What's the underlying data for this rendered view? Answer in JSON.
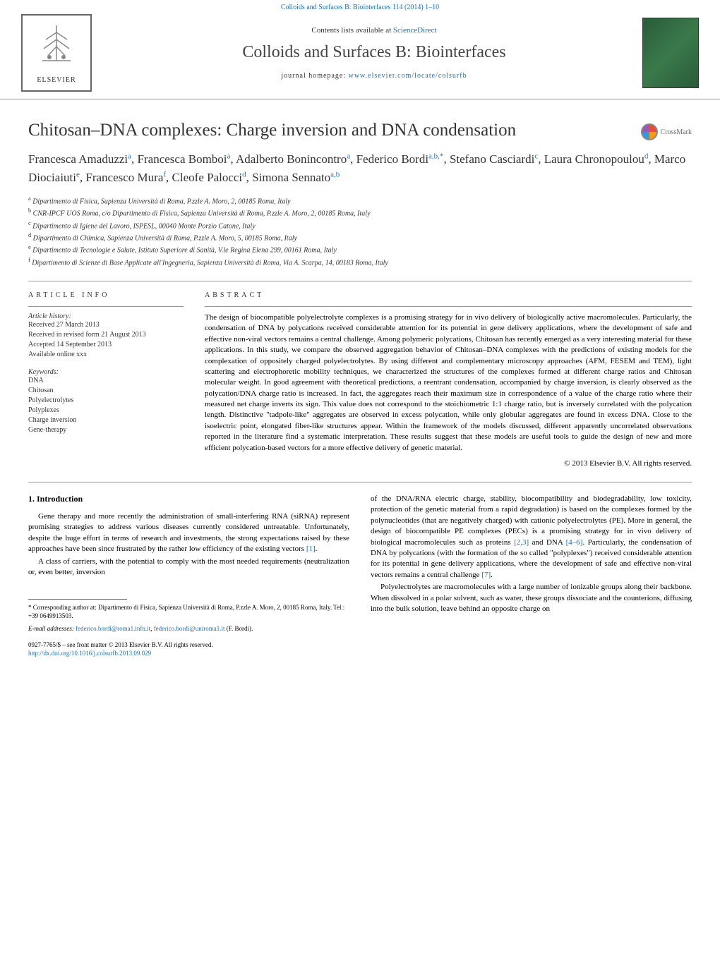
{
  "top_link": "Colloids and Surfaces B: Biointerfaces 114 (2014) 1–10",
  "header": {
    "contents_prefix": "Contents lists available at ",
    "contents_link": "ScienceDirect",
    "journal_title": "Colloids and Surfaces B: Biointerfaces",
    "homepage_prefix": "journal homepage: ",
    "homepage_link": "www.elsevier.com/locate/colsurfb",
    "publisher": "ELSEVIER"
  },
  "crossmark": "CrossMark",
  "article": {
    "title": "Chitosan–DNA complexes: Charge inversion and DNA condensation",
    "authors_html": "Francesca Amaduzzi<sup>a</sup>, Francesca Bomboi<sup>a</sup>, Adalberto Bonincontro<sup>a</sup>, Federico Bordi<sup>a,b,*</sup>, Stefano Casciardi<sup>c</sup>, Laura Chronopoulou<sup>d</sup>, Marco Diociaiuti<sup>e</sup>, Francesco Mura<sup>f</sup>, Cleofe Palocci<sup>d</sup>, Simona Sennato<sup>a,b</sup>"
  },
  "affiliations": [
    "a Dipartimento di Fisica, Sapienza Università di Roma, P.zzle A. Moro, 2, 00185 Roma, Italy",
    "b CNR-IPCF UOS Roma, c/o Dipartimento di Fisica, Sapienza Università di Roma, P.zzle A. Moro, 2, 00185 Roma, Italy",
    "c Dipartimento di Igiene del Lavoro, ISPESL, 00040 Monte Porzio Catone, Italy",
    "d Dipartimento di Chimica, Sapienza Università di Roma, P.zzle A. Moro, 5, 00185 Roma, Italy",
    "e Dipartimento di Tecnologie e Salute, Istituto Superiore di Sanità, V.le Regina Elena 299, 00161 Roma, Italy",
    "f Dipartimento di Scienze di Base Applicate all'Ingegneria, Sapienza Università di Roma, Via A. Scarpa, 14, 00183 Roma, Italy"
  ],
  "info": {
    "header": "ARTICLE INFO",
    "history_label": "Article history:",
    "history": [
      "Received 27 March 2013",
      "Received in revised form 21 August 2013",
      "Accepted 14 September 2013",
      "Available online xxx"
    ],
    "keywords_label": "Keywords:",
    "keywords": [
      "DNA",
      "Chitosan",
      "Polyelectrolytes",
      "Polyplexes",
      "Charge inversion",
      "Gene-therapy"
    ]
  },
  "abstract": {
    "header": "ABSTRACT",
    "text": "The design of biocompatible polyelectrolyte complexes is a promising strategy for in vivo delivery of biologically active macromolecules. Particularly, the condensation of DNA by polycations received considerable attention for its potential in gene delivery applications, where the development of safe and effective non-viral vectors remains a central challenge. Among polymeric polycations, Chitosan has recently emerged as a very interesting material for these applications. In this study, we compare the observed aggregation behavior of Chitosan–DNA complexes with the predictions of existing models for the complexation of oppositely charged polyelectrolytes. By using different and complementary microscopy approaches (AFM, FESEM and TEM), light scattering and electrophoretic mobility techniques, we characterized the structures of the complexes formed at different charge ratios and Chitosan molecular weight. In good agreement with theoretical predictions, a reentrant condensation, accompanied by charge inversion, is clearly observed as the polycation/DNA charge ratio is increased. In fact, the aggregates reach their maximum size in correspondence of a value of the charge ratio where their measured net charge inverts its sign. This value does not correspond to the stoichiometric 1:1 charge ratio, but is inversely correlated with the polycation length. Distinctive \"tadpole-like\" aggregates are observed in excess polycation, while only globular aggregates are found in excess DNA. Close to the isoelectric point, elongated fiber-like structures appear. Within the framework of the models discussed, different apparently uncorrelated observations reported in the literature find a systematic interpretation. These results suggest that these models are useful tools to guide the design of new and more efficient polycation-based vectors for a more effective delivery of genetic material.",
    "copyright": "© 2013 Elsevier B.V. All rights reserved."
  },
  "body": {
    "section_title": "1.  Introduction",
    "left_paragraphs": [
      "Gene therapy and more recently the administration of small-interfering RNA (siRNA) represent promising strategies to address various diseases currently considered untreatable. Unfortunately, despite the huge effort in terms of research and investments, the strong expectations raised by these approaches have been since frustrated by the rather low efficiency of the existing vectors [1].",
      "A class of carriers, with the potential to comply with the most needed requirements (neutralization or, even better, inversion"
    ],
    "right_paragraphs": [
      "of the DNA/RNA electric charge, stability, biocompatibility and biodegradability, low toxicity, protection of the genetic material from a rapid degradation) is based on the complexes formed by the polynucleotides (that are negatively charged) with cationic polyelectrolytes (PE). More in general, the design of biocompatible PE complexes (PECs) is a promising strategy for in vivo delivery of biological macromolecules such as proteins [2,3] and DNA [4–6]. Particularly, the condensation of DNA by polycations (with the formation of the so called \"polyplexes\") received considerable attention for its potential in gene delivery applications, where the development of safe and effective non-viral vectors remains a central challenge [7].",
      "Polyelectrolytes are macromolecules with a large number of ionizable groups along their backbone. When dissolved in a polar solvent, such as water, these groups dissociate and the counterions, diffusing into the bulk solution, leave behind an opposite charge on"
    ]
  },
  "footnotes": {
    "corresponding": "* Corresponding author at: Dipartimento di Fisica, Sapienza Università di Roma, P.zzle A. Moro, 2, 00185 Roma, Italy. Tel.: +39 0649913503.",
    "email_label": "E-mail addresses: ",
    "email1": "federico.bordi@roma1.infn.it",
    "email_sep": ", ",
    "email2": "federico.bordi@uniroma1.it",
    "email_suffix": " (F. Bordi)."
  },
  "bottom": {
    "issn": "0927-7765/$ – see front matter © 2013 Elsevier B.V. All rights reserved.",
    "doi": "http://dx.doi.org/10.1016/j.colsurfb.2013.09.029"
  },
  "colors": {
    "link": "#1a6eb8",
    "text": "#000000",
    "border": "#999999"
  }
}
